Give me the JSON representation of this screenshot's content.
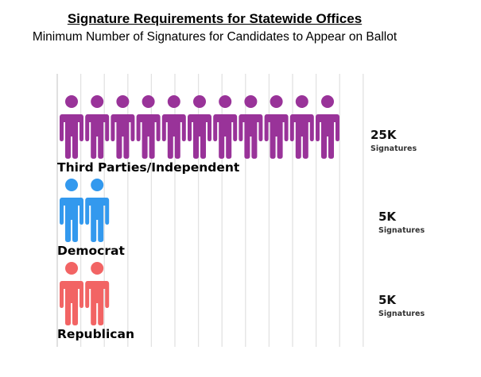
{
  "chart_data": {
    "type": "pictograph",
    "title": "Signature Requirements for Statewide Offices",
    "subtitle": "Minimum Number of Signatures for Candidates to Appear on Ballot",
    "icon": "person-icon",
    "grid": true,
    "categories": [
      "Third Parties/Independent",
      "Democrat",
      "Republican"
    ],
    "values": [
      25000,
      5000,
      5000
    ],
    "icon_counts": [
      11,
      2,
      2
    ],
    "value_labels": [
      "25K",
      "5K",
      "5K"
    ],
    "unit_label": "Signatures",
    "colors": [
      "#993399",
      "#3399EE",
      "#F26464"
    ]
  }
}
